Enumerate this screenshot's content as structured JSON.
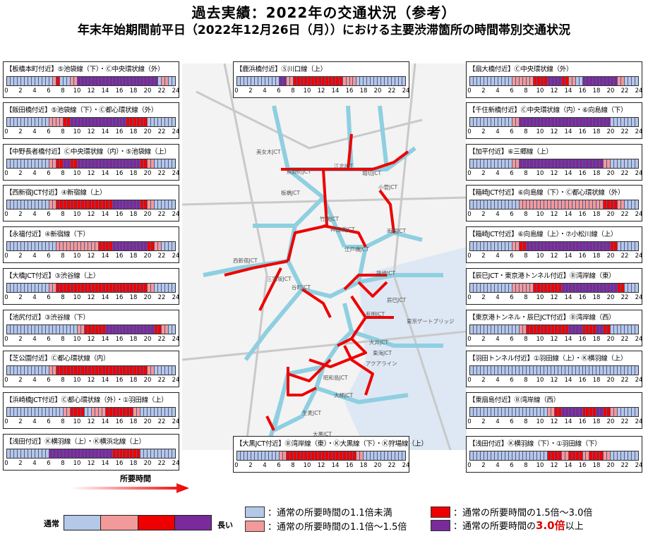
{
  "title": "過去実績：2022年の交通状況（参考）",
  "subtitle": "年末年始期間前平日（2022年12月26日（月））における主要渋滞箇所の時間帯別交通状況",
  "colors": {
    "normal": "#b4c8e8",
    "slight": "#f29a9a",
    "heavy": "#ee0000",
    "severe": "#7a2a9a"
  },
  "tick_labels": [
    "0",
    "2",
    "4",
    "6",
    "8",
    "10",
    "12",
    "14",
    "16",
    "18",
    "20",
    "22",
    "24"
  ],
  "chart_data": {
    "type": "heatmap",
    "x": "hour",
    "levels": {
      "0": "通常の所要時間の1.1倍未満",
      "1": "通常の所要時間の1.1倍〜1.5倍",
      "2": "通常の所要時間の1.5倍〜3.0倍",
      "3": "通常の所要時間の3.0倍以上"
    },
    "panels": [
      {
        "label": "【板橋本町付近】⑤池袋線（下）・Ⓒ中央環状線（外）",
        "values": [
          0,
          0,
          0,
          0,
          0,
          0,
          0,
          0,
          0,
          0,
          0,
          0,
          0,
          1,
          2,
          0,
          0,
          0,
          1,
          1,
          3,
          3,
          3,
          3,
          3,
          3,
          3,
          3,
          3,
          3,
          3,
          3,
          3,
          3,
          3,
          3,
          3,
          3,
          3,
          3,
          3,
          3,
          3,
          0,
          1,
          1,
          0,
          0
        ]
      },
      {
        "label": "【飯田橋付近】⑤池袋線（下）・Ⓒ都心環状線（外）",
        "values": [
          0,
          0,
          0,
          0,
          0,
          0,
          0,
          0,
          0,
          0,
          0,
          0,
          1,
          1,
          1,
          1,
          2,
          2,
          3,
          3,
          3,
          3,
          3,
          3,
          3,
          3,
          3,
          3,
          3,
          3,
          3,
          3,
          3,
          3,
          2,
          2,
          2,
          2,
          2,
          2,
          0,
          0,
          0,
          0,
          0,
          0,
          0,
          0
        ]
      },
      {
        "label": "【中野長者橋付近】Ⓒ中央環状線（内）・⑤池袋線（上）",
        "values": [
          0,
          0,
          0,
          0,
          0,
          0,
          0,
          0,
          0,
          0,
          0,
          0,
          1,
          1,
          2,
          2,
          3,
          3,
          2,
          2,
          3,
          3,
          3,
          3,
          3,
          3,
          3,
          3,
          3,
          3,
          3,
          3,
          3,
          3,
          3,
          3,
          3,
          3,
          2,
          2,
          1,
          1,
          0,
          0,
          0,
          0,
          0,
          0
        ]
      },
      {
        "label": "【西新宿JCT付近】④新宿線（上）",
        "values": [
          0,
          0,
          0,
          0,
          0,
          0,
          0,
          0,
          0,
          0,
          0,
          0,
          1,
          1,
          2,
          2,
          2,
          2,
          2,
          2,
          2,
          2,
          2,
          2,
          2,
          2,
          2,
          2,
          2,
          2,
          3,
          3,
          3,
          3,
          3,
          3,
          3,
          3,
          2,
          2,
          1,
          1,
          0,
          0,
          0,
          0,
          0,
          0
        ]
      },
      {
        "label": "【永福付近】④新宿線（下）",
        "values": [
          0,
          0,
          0,
          0,
          0,
          0,
          0,
          0,
          0,
          0,
          0,
          0,
          0,
          0,
          1,
          1,
          1,
          1,
          1,
          1,
          1,
          1,
          1,
          1,
          1,
          1,
          2,
          2,
          2,
          2,
          3,
          3,
          3,
          3,
          3,
          3,
          3,
          3,
          3,
          3,
          2,
          2,
          1,
          1,
          0,
          0,
          0,
          0
        ]
      },
      {
        "label": "【大橋JCT付近】③渋谷線（上）",
        "values": [
          0,
          0,
          0,
          0,
          0,
          0,
          0,
          0,
          0,
          0,
          0,
          0,
          1,
          1,
          2,
          2,
          2,
          2,
          2,
          2,
          2,
          2,
          2,
          2,
          2,
          2,
          2,
          2,
          2,
          2,
          2,
          2,
          2,
          2,
          2,
          2,
          2,
          2,
          2,
          2,
          1,
          1,
          0,
          0,
          0,
          0,
          0,
          0
        ]
      },
      {
        "label": "【池尻付近】③渋谷線（下）",
        "values": [
          0,
          0,
          0,
          0,
          0,
          0,
          0,
          0,
          0,
          0,
          0,
          0,
          0,
          0,
          0,
          0,
          0,
          0,
          0,
          0,
          1,
          1,
          2,
          2,
          2,
          2,
          2,
          2,
          3,
          3,
          3,
          3,
          3,
          3,
          3,
          3,
          3,
          3,
          3,
          3,
          3,
          3,
          2,
          2,
          1,
          1,
          0,
          0
        ]
      },
      {
        "label": "【芝公園付近】Ⓒ都心環状線（内）",
        "values": [
          0,
          0,
          0,
          0,
          0,
          0,
          0,
          0,
          0,
          0,
          0,
          0,
          1,
          1,
          2,
          2,
          2,
          2,
          2,
          2,
          2,
          2,
          2,
          2,
          2,
          2,
          2,
          2,
          2,
          2,
          2,
          2,
          2,
          2,
          2,
          2,
          2,
          2,
          2,
          2,
          1,
          1,
          0,
          0,
          0,
          0,
          0,
          0
        ]
      },
      {
        "label": "【浜崎橋JCT付近】Ⓒ都心環状線（外）・①羽田線（上）",
        "values": [
          0,
          0,
          0,
          0,
          0,
          0,
          0,
          0,
          0,
          0,
          0,
          0,
          0,
          0,
          0,
          0,
          1,
          1,
          2,
          2,
          2,
          2,
          0,
          0,
          1,
          1,
          1,
          1,
          2,
          2,
          2,
          2,
          2,
          2,
          2,
          2,
          1,
          1,
          0,
          0,
          0,
          0,
          0,
          0,
          0,
          0,
          0,
          0
        ]
      },
      {
        "label": "【浅田付近】Ⓚ横羽線（上）・Ⓚ横浜北線（上）",
        "values": [
          0,
          0,
          0,
          0,
          0,
          0,
          0,
          0,
          0,
          0,
          0,
          0,
          3,
          3,
          3,
          3,
          3,
          3,
          3,
          3,
          3,
          3,
          3,
          3,
          3,
          3,
          3,
          3,
          3,
          3,
          2,
          2,
          2,
          2,
          2,
          2,
          2,
          2,
          0,
          0,
          0,
          0,
          0,
          0,
          0,
          0,
          0,
          0
        ]
      },
      {
        "label": "【鹿浜橋付近】Ⓢ川口線（上）",
        "values": [
          0,
          0,
          0,
          0,
          0,
          0,
          0,
          0,
          0,
          0,
          0,
          0,
          3,
          3,
          1,
          1,
          2,
          2,
          2,
          2,
          2,
          2,
          2,
          2,
          2,
          2,
          2,
          2,
          2,
          2,
          1,
          1,
          1,
          1,
          0,
          0,
          0,
          0,
          0,
          0,
          0,
          0,
          0,
          0,
          0,
          0,
          0,
          0
        ]
      },
      {
        "label": "【扇大橋付近】Ⓒ中央環状線（外）",
        "values": [
          0,
          0,
          0,
          0,
          0,
          0,
          0,
          0,
          0,
          0,
          0,
          0,
          1,
          1,
          1,
          1,
          1,
          1,
          2,
          2,
          2,
          2,
          3,
          3,
          3,
          3,
          2,
          2,
          1,
          1,
          0,
          0,
          3,
          3,
          3,
          3,
          3,
          3,
          3,
          3,
          3,
          3,
          1,
          1,
          0,
          0,
          0,
          0
        ]
      },
      {
        "label": "【千住新橋付近】Ⓒ中央環状線（内）・⑥向島線（下）",
        "values": [
          0,
          0,
          0,
          0,
          0,
          0,
          0,
          0,
          0,
          0,
          0,
          0,
          1,
          1,
          3,
          3,
          3,
          3,
          3,
          3,
          3,
          3,
          3,
          3,
          3,
          3,
          3,
          3,
          3,
          3,
          3,
          3,
          3,
          3,
          3,
          3,
          3,
          3,
          3,
          3,
          0,
          0,
          0,
          0,
          0,
          0,
          0,
          0
        ]
      },
      {
        "label": "【加平付近】⑥三郷線（上）",
        "values": [
          0,
          0,
          0,
          0,
          0,
          0,
          0,
          0,
          0,
          0,
          0,
          0,
          1,
          1,
          3,
          3,
          3,
          3,
          3,
          3,
          3,
          3,
          3,
          3,
          3,
          3,
          3,
          3,
          3,
          3,
          3,
          3,
          3,
          3,
          3,
          3,
          3,
          3,
          1,
          1,
          0,
          0,
          0,
          0,
          0,
          0,
          0,
          0
        ]
      },
      {
        "label": "【箱崎JCT付近】⑥向島線（下）・Ⓒ都心環状線（外）",
        "values": [
          0,
          0,
          0,
          0,
          0,
          0,
          0,
          0,
          0,
          0,
          0,
          0,
          0,
          0,
          1,
          1,
          1,
          1,
          1,
          1,
          1,
          1,
          1,
          1,
          1,
          1,
          1,
          1,
          1,
          1,
          1,
          1,
          1,
          1,
          1,
          1,
          1,
          1,
          2,
          2,
          2,
          2,
          1,
          1,
          0,
          0,
          0,
          0
        ]
      },
      {
        "label": "【箱崎JCT付近】⑥向島線（上）・⑦小松川線（上）",
        "values": [
          0,
          0,
          0,
          0,
          0,
          0,
          0,
          0,
          0,
          0,
          0,
          0,
          1,
          1,
          2,
          2,
          3,
          3,
          3,
          3,
          3,
          3,
          3,
          3,
          3,
          3,
          3,
          3,
          3,
          3,
          3,
          3,
          3,
          3,
          3,
          3,
          3,
          3,
          3,
          3,
          2,
          2,
          0,
          0,
          0,
          0,
          0,
          0
        ]
      },
      {
        "label": "【辰巳JCT・東京港トンネル付近】Ⓑ湾岸線（東）",
        "values": [
          0,
          0,
          0,
          0,
          0,
          0,
          0,
          0,
          0,
          0,
          0,
          0,
          1,
          1,
          1,
          1,
          1,
          1,
          2,
          2,
          2,
          2,
          2,
          2,
          2,
          2,
          3,
          3,
          3,
          3,
          3,
          3,
          3,
          3,
          3,
          3,
          3,
          3,
          3,
          3,
          3,
          3,
          2,
          2,
          0,
          0,
          0,
          0
        ]
      },
      {
        "label": "【東京港トンネル・辰巳JCT付近】Ⓑ湾岸線（西）",
        "values": [
          0,
          0,
          0,
          0,
          0,
          0,
          0,
          0,
          0,
          0,
          0,
          0,
          0,
          0,
          1,
          1,
          2,
          2,
          2,
          2,
          2,
          2,
          2,
          2,
          2,
          2,
          2,
          2,
          3,
          3,
          3,
          3,
          2,
          2,
          2,
          2,
          3,
          3,
          2,
          2,
          0,
          0,
          0,
          0,
          0,
          0,
          0,
          0
        ]
      },
      {
        "label": "【羽田トンネル付近】①羽田線（上）・Ⓚ横羽線（上）",
        "values": [
          0,
          0,
          0,
          0,
          0,
          0,
          0,
          0,
          0,
          0,
          0,
          0,
          0,
          0,
          0,
          0,
          0,
          0,
          0,
          0,
          0,
          0,
          0,
          0,
          0,
          0,
          0,
          0,
          0,
          0,
          0,
          0,
          0,
          0,
          0,
          0,
          0,
          0,
          0,
          0,
          0,
          0,
          0,
          0,
          0,
          0,
          0,
          0
        ]
      },
      {
        "label": "【東扇島付近】Ⓑ湾岸線（西）",
        "values": [
          0,
          0,
          0,
          0,
          0,
          0,
          0,
          0,
          0,
          0,
          0,
          0,
          0,
          0,
          0,
          0,
          0,
          0,
          0,
          0,
          0,
          0,
          1,
          1,
          2,
          2,
          3,
          3,
          3,
          3,
          3,
          3,
          2,
          2,
          2,
          2,
          3,
          3,
          2,
          2,
          1,
          1,
          0,
          0,
          0,
          0,
          0,
          0
        ]
      },
      {
        "label": "【大黒JCT付近】Ⓑ湾岸線（東）・Ⓚ大黒線（下）・Ⓚ狩場線（上）",
        "values": [
          0,
          0,
          0,
          0,
          0,
          0,
          0,
          0,
          0,
          0,
          0,
          0,
          1,
          1,
          2,
          2,
          2,
          2,
          2,
          2,
          2,
          2,
          2,
          2,
          2,
          2,
          2,
          2,
          2,
          2,
          2,
          2,
          2,
          2,
          1,
          1,
          0,
          0,
          0,
          0,
          0,
          0,
          0,
          0,
          0,
          0,
          0,
          0
        ]
      },
      {
        "label": "【浅田付近】Ⓚ横羽線（下）・①羽田線（下）",
        "values": [
          0,
          0,
          0,
          0,
          0,
          0,
          0,
          0,
          0,
          0,
          0,
          0,
          0,
          0,
          0,
          0,
          0,
          0,
          0,
          0,
          0,
          0,
          2,
          2,
          2,
          2,
          1,
          1,
          2,
          2,
          2,
          2,
          1,
          1,
          2,
          2,
          2,
          2,
          1,
          1,
          0,
          0,
          0,
          0,
          0,
          0,
          0,
          0
        ]
      }
    ]
  },
  "legend": {
    "axis_title": "所要時間",
    "low": "通常",
    "high": "長い",
    "items": [
      {
        "text": "：通常の所要時間の1.1倍未満"
      },
      {
        "text": "：通常の所要時間の1.1倍〜1.5倍"
      },
      {
        "text": "：通常の所要時間の1.5倍〜3.0倍"
      },
      {
        "prefix": "：通常の所要時間の",
        "emph": "3.0倍",
        "suffix": "以上"
      }
    ]
  },
  "map_labels": [
    "美女木JCT",
    "板橋JCT",
    "熊野町JCT",
    "江北JCT",
    "小菅JCT",
    "堀切JCT",
    "竹橋JCT",
    "神田橋JCT",
    "西新宿JCT",
    "三宅坂JCT",
    "谷町JCT",
    "江戸橋JCT",
    "箱崎JCT",
    "両国JCT",
    "辰巳JCT",
    "有明JCT",
    "大井JCT",
    "東海JCT",
    "昭和島JCT",
    "大師JCT",
    "大黒JCT",
    "本牧JCT",
    "生麦JCT",
    "浅田",
    "東京ゲートブリッジ",
    "アクアライン"
  ]
}
